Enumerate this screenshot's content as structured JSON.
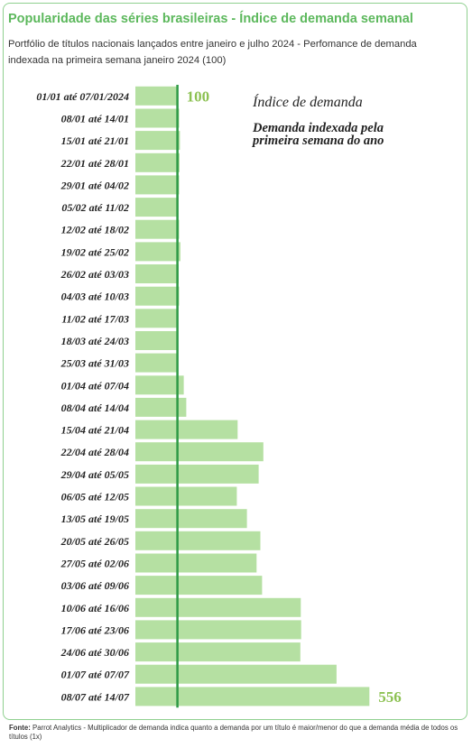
{
  "header": {
    "title": "Popularidade das séries brasileiras - Índice de demanda semanal",
    "subtitle": "Portfólio de títulos nacionais lançados entre janeiro e julho 2024 - Perfomance de demanda indexada na primeira semana janeiro 2024 (100)"
  },
  "footer": {
    "source_label": "Fonte:",
    "source_text": " Parrot Analytics - Multiplicador de demanda indica quanto a demanda por um título é maior/menor do que a demanda média de todos os títulos (1x)"
  },
  "colors": {
    "bar": "#b5e0a2",
    "baseline": "#2e9a46",
    "title": "#5cb85c",
    "value_label": "#8cc152",
    "border": "#8fd08f"
  },
  "chart_data": {
    "type": "bar",
    "orientation": "horizontal",
    "categories": [
      "01/01 até 07/01/2024",
      "08/01 até 14/01",
      "15/01 até 21/01",
      "22/01 até 28/01",
      "29/01 até 04/02",
      "05/02 até 11/02",
      "12/02 até 18/02",
      "19/02 até 25/02",
      "26/02 até 03/03",
      "04/03 até 10/03",
      "11/02 até 17/03",
      "18/03 até 24/03",
      "25/03 até 31/03",
      "01/04 até 07/04",
      "08/04 até 14/04",
      "15/04 até 21/04",
      "22/04 até 28/04",
      "29/04 até 05/05",
      "06/05 até 12/05",
      "13/05 até 19/05",
      "20/05 até 26/05",
      "27/05 até 02/06",
      "03/06 até 09/06",
      "10/06 até 16/06",
      "17/06 até 23/06",
      "24/06 até 30/06",
      "01/07 até 07/07",
      "08/07 até 14/07"
    ],
    "values": [
      100,
      104,
      106,
      105,
      104,
      102,
      104,
      107,
      103,
      104,
      101,
      99,
      99,
      115,
      121,
      243,
      304,
      293,
      241,
      265,
      297,
      288,
      301,
      393,
      394,
      392,
      478,
      556
    ],
    "baseline": 100,
    "xlim": [
      0,
      556
    ],
    "data_labels": [
      {
        "category": "01/01 até 07/01/2024",
        "text": "100"
      },
      {
        "category": "08/07 até 14/07",
        "text": "556"
      }
    ],
    "legend": {
      "title": "Índice de demanda",
      "description": "Demanda indexada pela primeira semana do ano"
    },
    "grid": false
  }
}
